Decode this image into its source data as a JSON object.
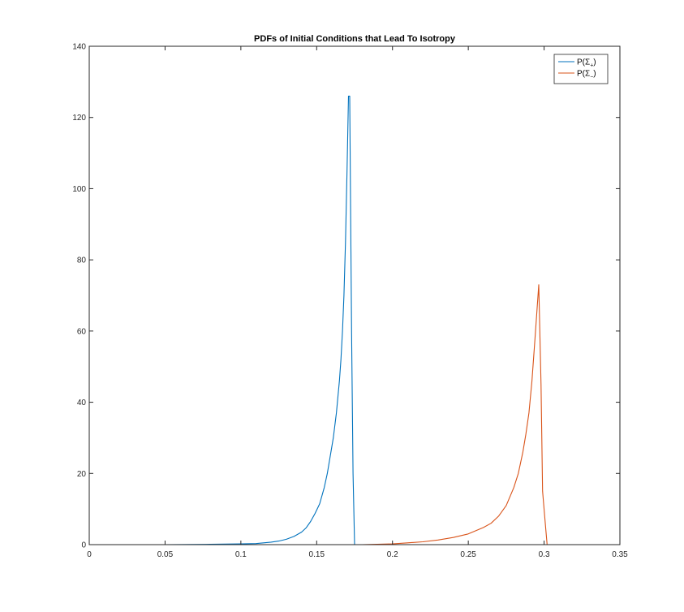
{
  "chart_data": {
    "type": "line",
    "title": "PDFs of Initial Conditions that Lead To Isotropy",
    "xlabel": "",
    "ylabel": "",
    "xlim": [
      0,
      0.35
    ],
    "ylim": [
      0,
      140
    ],
    "xticks": [
      0,
      0.05,
      0.1,
      0.15,
      0.2,
      0.25,
      0.3,
      0.35
    ],
    "xtick_labels": [
      "0",
      "0.05",
      "0.1",
      "0.15",
      "0.2",
      "0.25",
      "0.3",
      "0.35"
    ],
    "yticks": [
      0,
      20,
      40,
      60,
      80,
      100,
      120,
      140
    ],
    "ytick_labels": [
      "0",
      "20",
      "40",
      "60",
      "80",
      "100",
      "120",
      "140"
    ],
    "grid": false,
    "legend_position": "top-right",
    "series": [
      {
        "name": "P(Σ+)",
        "legend_main": "P(Σ",
        "legend_sub": "+",
        "legend_close": ")",
        "color": "#0072BD",
        "x": [
          0.01,
          0.05,
          0.08,
          0.1,
          0.11,
          0.12,
          0.125,
          0.13,
          0.135,
          0.14,
          0.143,
          0.146,
          0.149,
          0.152,
          0.155,
          0.157,
          0.159,
          0.161,
          0.163,
          0.165,
          0.166,
          0.167,
          0.168,
          0.169,
          0.17,
          0.171,
          0.1718,
          0.173,
          0.174,
          0.175
        ],
        "y": [
          0,
          0,
          0.1,
          0.2,
          0.3,
          0.7,
          1.0,
          1.5,
          2.3,
          3.5,
          4.7,
          6.5,
          8.8,
          11.5,
          16,
          20,
          25,
          30,
          37,
          46,
          52,
          60,
          70,
          85,
          105,
          126,
          126,
          60,
          20,
          0
        ]
      },
      {
        "name": "P(Σ−)",
        "legend_main": "P(Σ",
        "legend_sub": "−",
        "legend_close": ")",
        "color": "#D95319",
        "x": [
          0.01,
          0.1,
          0.15,
          0.18,
          0.2,
          0.21,
          0.22,
          0.23,
          0.24,
          0.25,
          0.26,
          0.265,
          0.27,
          0.275,
          0.28,
          0.283,
          0.286,
          0.288,
          0.29,
          0.292,
          0.294,
          0.2965,
          0.298,
          0.299,
          0.301,
          0.302
        ],
        "y": [
          0,
          0,
          0,
          0,
          0.2,
          0.5,
          0.8,
          1.3,
          2.0,
          3.0,
          4.8,
          6.0,
          8.0,
          11,
          16,
          20,
          26,
          31,
          37,
          46,
          58,
          73,
          45,
          15,
          5,
          0
        ]
      }
    ]
  }
}
